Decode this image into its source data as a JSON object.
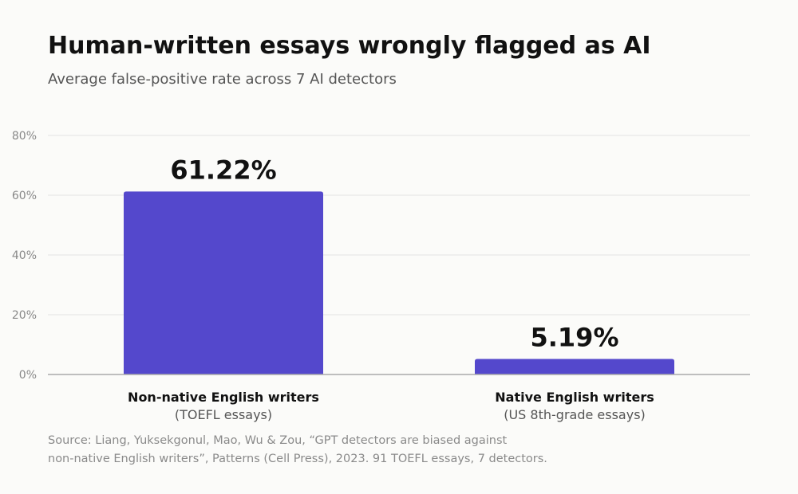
{
  "title": "Human-written essays wrongly flagged as AI",
  "subtitle": "Average false-positive rate across 7 AI detectors",
  "source": {
    "line1": "Source: Liang, Yuksekgonul, Mao, Wu & Zou, “GPT detectors are biased against",
    "line2": "non-native English writers”, Patterns (Cell Press), 2023. 91 TOEFL essays, 7 detectors."
  },
  "colors": {
    "bar": "#5448cc",
    "grid": "#e3e3e3",
    "axis": "#aaaaaa",
    "tick_text": "#888888",
    "value_text": "#111111",
    "category_text": "#111111",
    "category_sub_text": "#555555"
  },
  "chart_data": {
    "type": "bar",
    "categories": [
      "Non-native English writers",
      "Native English writers"
    ],
    "category_sublabels": [
      "(TOEFL essays)",
      "(US 8th-grade essays)"
    ],
    "values": [
      61.22,
      5.19
    ],
    "value_labels": [
      "61.22%",
      "5.19%"
    ],
    "ylim": [
      0,
      80
    ],
    "yticks": [
      0,
      20,
      40,
      60,
      80
    ],
    "ytick_labels": [
      "0%",
      "20%",
      "40%",
      "60%",
      "80%"
    ],
    "grid": true,
    "legend": "none"
  }
}
